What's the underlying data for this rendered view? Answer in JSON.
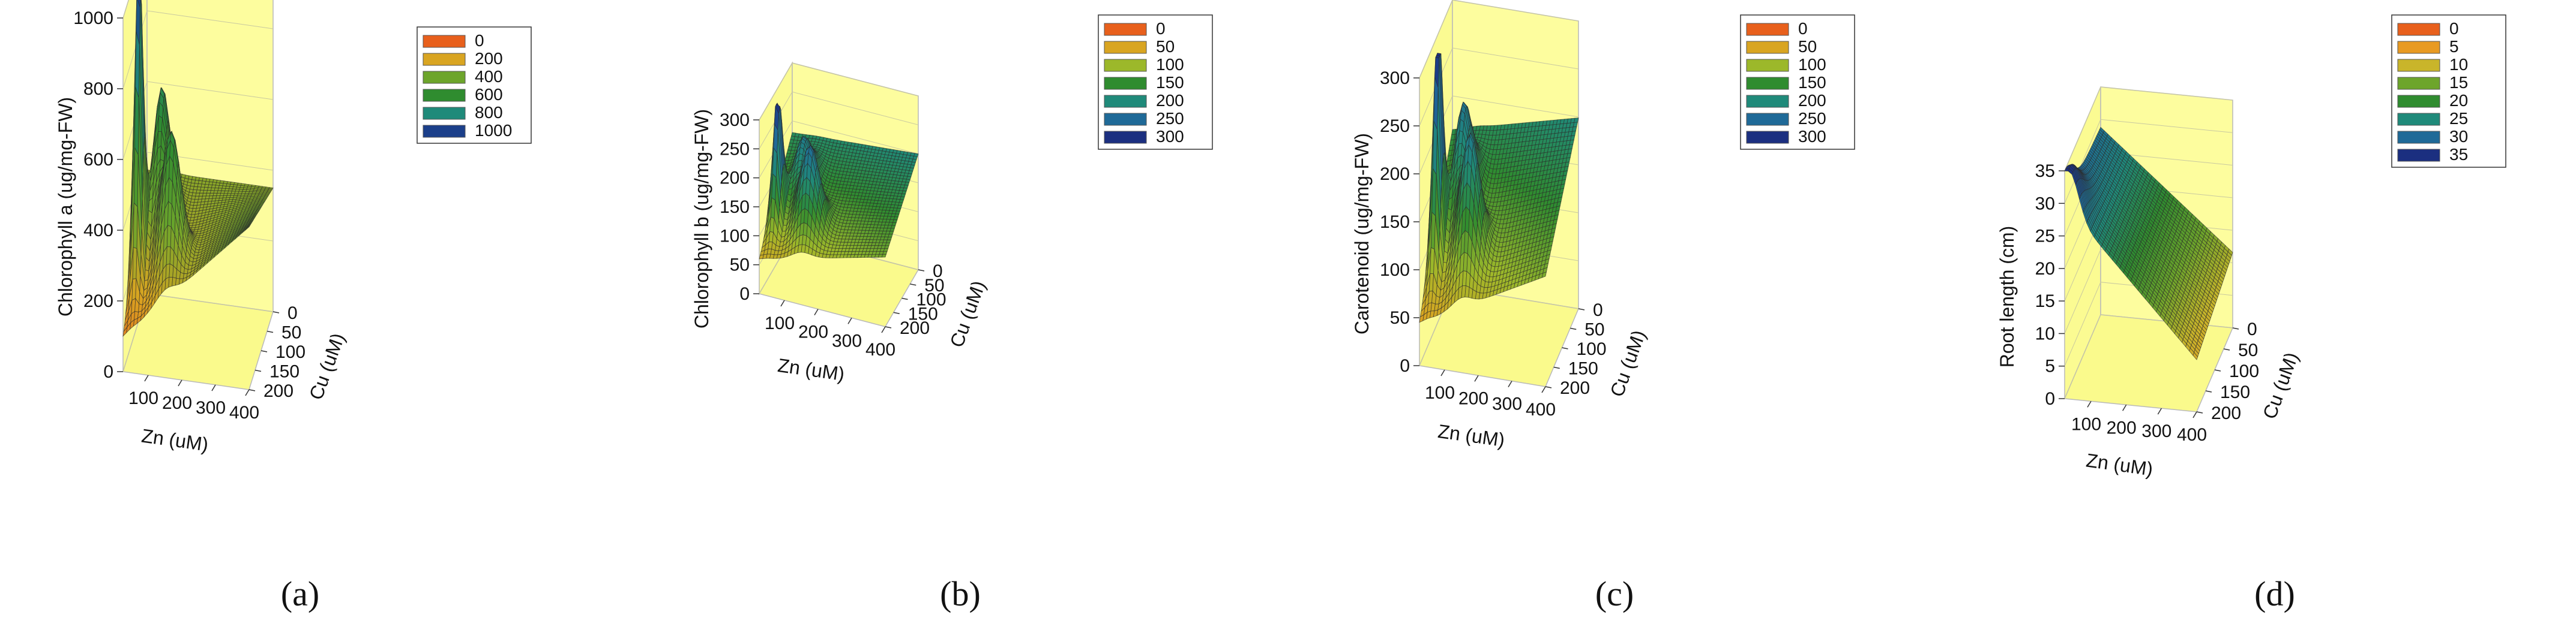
{
  "chart_data": [
    {
      "type": "surface3d",
      "caption": "(a)",
      "zlabel": "Chlorophyll a (ug/mg-FW)",
      "xlabel": "Zn (uM)",
      "ylabel": "Cu (uM)",
      "xticks": [
        "100",
        "200",
        "300",
        "400"
      ],
      "yticks": [
        "0",
        "50",
        "100",
        "150",
        "200"
      ],
      "zticks": [
        "0",
        "200",
        "400",
        "600",
        "800",
        "1000"
      ],
      "xlim": [
        25,
        400
      ],
      "ylim": [
        0,
        200
      ],
      "zlim": [
        0,
        1000
      ],
      "legend": [
        "0",
        "200",
        "400",
        "600",
        "800",
        "1000"
      ],
      "legend_colors": [
        "#e8601c",
        "#d9a521",
        "#6da52b",
        "#2f8c2f",
        "#1f8a7a",
        "#1b3f8a"
      ],
      "peaks": [
        {
          "zn": 50,
          "cu": 60,
          "value": 1000
        },
        {
          "zn": 100,
          "cu": 110,
          "value": 540
        },
        {
          "zn": 150,
          "cu": 50,
          "value": 600
        }
      ]
    },
    {
      "type": "surface3d",
      "caption": "(b)",
      "zlabel": "Chlorophyll b (ug/mg-FW)",
      "xlabel": "Zn (uM)",
      "ylabel": "Cu (uM)",
      "xticks": [
        "100",
        "200",
        "300",
        "400"
      ],
      "yticks": [
        "0",
        "50",
        "100",
        "150",
        "200"
      ],
      "zticks": [
        "0",
        "50",
        "100",
        "150",
        "200",
        "250",
        "300"
      ],
      "xlim": [
        25,
        400
      ],
      "ylim": [
        0,
        200
      ],
      "zlim": [
        0,
        300
      ],
      "legend": [
        "0",
        "50",
        "100",
        "150",
        "200",
        "250",
        "300"
      ],
      "legend_colors": [
        "#e8601c",
        "#d9a521",
        "#9cb82a",
        "#2f8c2f",
        "#1f8a7a",
        "#1f6a98",
        "#1b2f80"
      ],
      "peaks": [
        {
          "zn": 50,
          "cu": 60,
          "value": 300
        },
        {
          "zn": 100,
          "cu": 110,
          "value": 165
        },
        {
          "zn": 150,
          "cu": 50,
          "value": 210
        }
      ]
    },
    {
      "type": "surface3d",
      "caption": "(c)",
      "zlabel": "Carotenoid (ug/mg-FW)",
      "xlabel": "Zn (uM)",
      "ylabel": "Cu (uM)",
      "xticks": [
        "100",
        "200",
        "300",
        "400"
      ],
      "yticks": [
        "0",
        "50",
        "100",
        "150",
        "200"
      ],
      "zticks": [
        "0",
        "50",
        "100",
        "150",
        "200",
        "250",
        "300"
      ],
      "xlim": [
        25,
        400
      ],
      "ylim": [
        0,
        200
      ],
      "zlim": [
        0,
        300
      ],
      "legend": [
        "0",
        "50",
        "100",
        "150",
        "200",
        "250",
        "300"
      ],
      "legend_colors": [
        "#e8601c",
        "#d9a521",
        "#9cb82a",
        "#2f8c2f",
        "#1f8a7a",
        "#1f6a98",
        "#1b2f80"
      ],
      "peaks": [
        {
          "zn": 50,
          "cu": 60,
          "value": 300
        },
        {
          "zn": 100,
          "cu": 110,
          "value": 180
        },
        {
          "zn": 150,
          "cu": 50,
          "value": 200
        }
      ]
    },
    {
      "type": "surface3d",
      "caption": "(d)",
      "zlabel": "Root length (cm)",
      "xlabel": "Zn (uM)",
      "ylabel": "Cu (uM)",
      "xticks": [
        "100",
        "200",
        "300",
        "400"
      ],
      "yticks": [
        "0",
        "50",
        "100",
        "150",
        "200"
      ],
      "zticks": [
        "0",
        "5",
        "10",
        "15",
        "20",
        "25",
        "30",
        "35"
      ],
      "xlim": [
        25,
        400
      ],
      "ylim": [
        0,
        200
      ],
      "zlim": [
        0,
        35
      ],
      "legend": [
        "0",
        "5",
        "10",
        "15",
        "20",
        "25",
        "30",
        "35"
      ],
      "legend_colors": [
        "#e8601c",
        "#e89a22",
        "#c9b52a",
        "#6da52b",
        "#2f8c2f",
        "#1f8a7a",
        "#1f6a98",
        "#1b2f80"
      ],
      "peaks": [
        {
          "zn": 40,
          "cu": 5,
          "value": 35
        }
      ]
    }
  ]
}
